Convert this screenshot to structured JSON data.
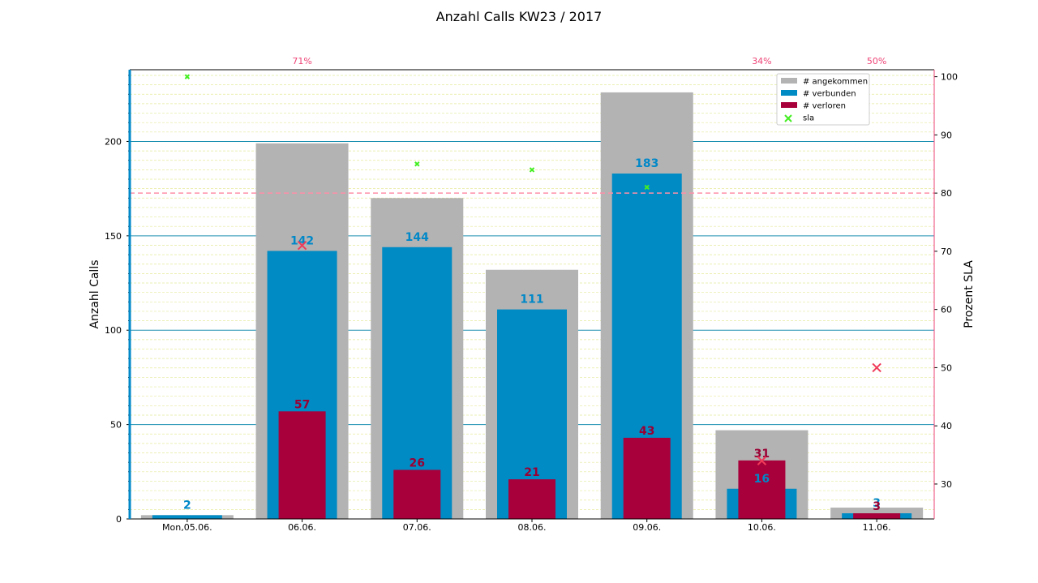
{
  "chart_data": {
    "type": "bar",
    "title": "Anzahl Calls KW23 / 2017",
    "ylabel_left": "Anzahl Calls",
    "ylabel_right": "Prozent SLA",
    "categories": [
      "Mon,05.06.",
      "06.06.",
      "07.06.",
      "08.06.",
      "09.06.",
      "10.06.",
      "11.06."
    ],
    "series": [
      {
        "name": "# angekommen",
        "values": [
          2,
          199,
          170,
          132,
          226,
          47,
          6
        ],
        "color": "#b3b3b3"
      },
      {
        "name": "# verbunden",
        "values": [
          2,
          142,
          144,
          111,
          183,
          16,
          3
        ],
        "color": "#008bc4"
      },
      {
        "name": "# verloren",
        "values": [
          0,
          57,
          26,
          21,
          43,
          31,
          3
        ],
        "color": "#a8003a"
      }
    ],
    "sla": {
      "name": "sla",
      "values": [
        100,
        71,
        85,
        84,
        81,
        34,
        50
      ],
      "below_target_color": "#f03b5a",
      "above_target_color": "#44ee22",
      "top_labels": [
        {
          "index": 1,
          "text": "71%"
        },
        {
          "index": 5,
          "text": "34%"
        },
        {
          "index": 6,
          "text": "50%"
        }
      ],
      "label_color": "#ee4477"
    },
    "sla_target": 80,
    "ylim_left": [
      0,
      238
    ],
    "ylim_right": [
      24,
      101.2
    ],
    "yticks_left": [
      "0",
      "50",
      "100",
      "150",
      "200"
    ],
    "yticks_right": [
      "30",
      "40",
      "50",
      "60",
      "70",
      "80",
      "90",
      "100"
    ],
    "grid": true,
    "legend_position": "top-right",
    "colors": {
      "verbunden_label": "#0088c8",
      "verloren_label": "#990033",
      "major_grid": "#1a8fb0",
      "minor_grid": "#e5ea9a",
      "target_line": "#ff8fa8",
      "left_spine": "#0088c8",
      "right_spine": "#ee4477"
    }
  }
}
